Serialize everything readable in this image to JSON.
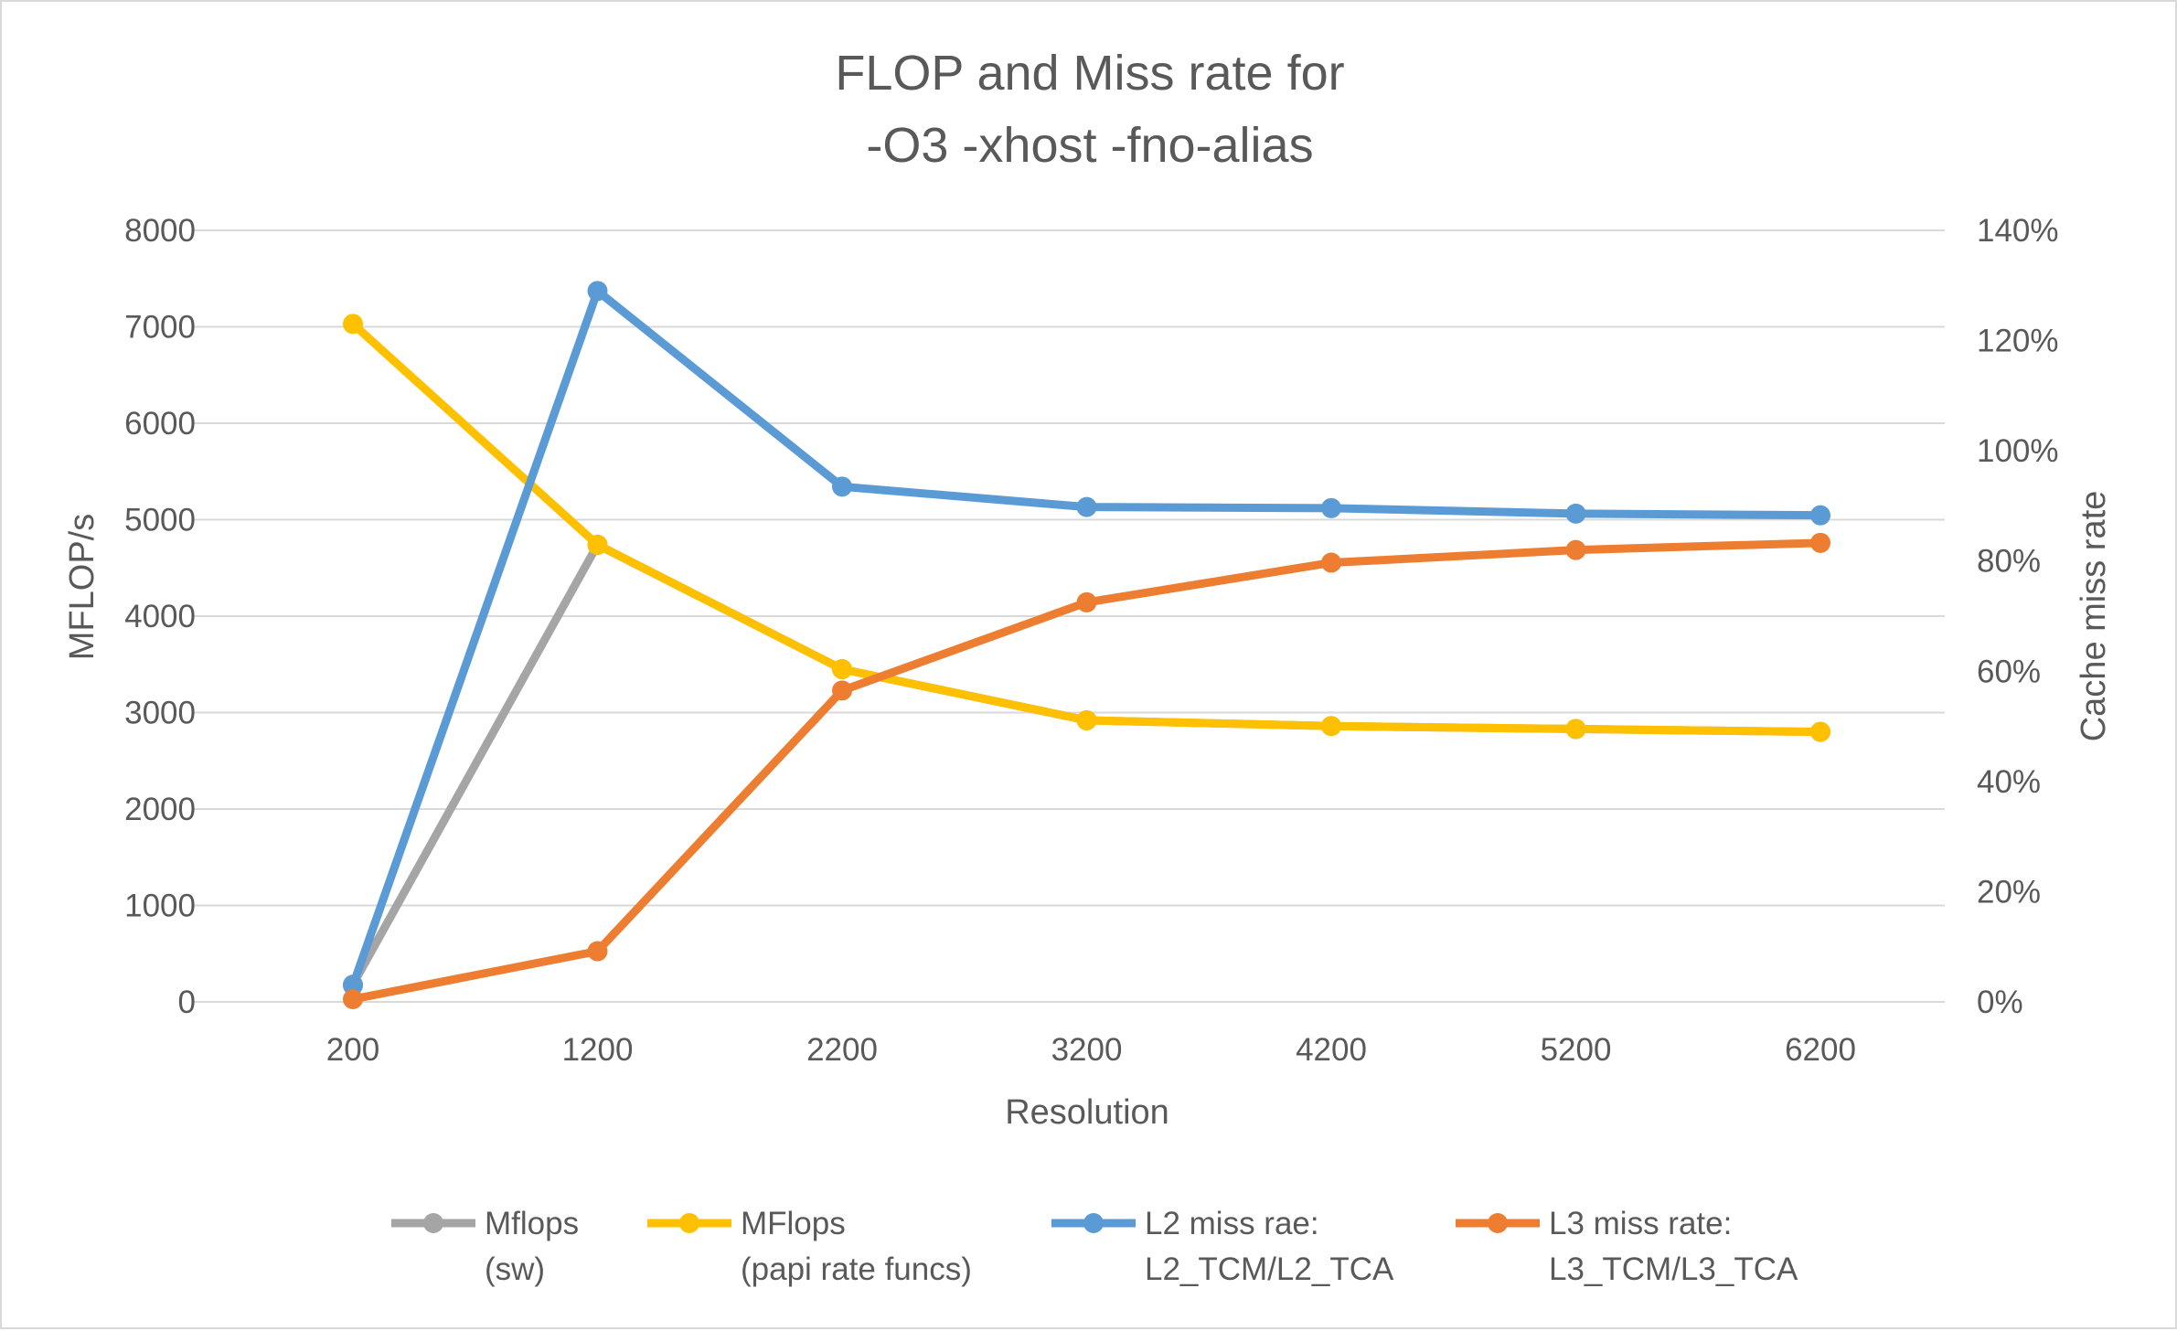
{
  "chart_data": {
    "type": "line",
    "title_lines": [
      "FLOP and Miss rate for",
      "-O3 -xhost -fno-alias"
    ],
    "xlabel": "Resolution",
    "ylabel": "MFLOP/s",
    "y2label": "Cache miss rate",
    "x": [
      200,
      1200,
      2200,
      3200,
      4200,
      5200,
      6200
    ],
    "x_tick_labels": [
      "200",
      "1200",
      "2200",
      "3200",
      "4200",
      "5200",
      "6200"
    ],
    "ylim": [
      0,
      8000
    ],
    "y_ticks": [
      0,
      1000,
      2000,
      3000,
      4000,
      5000,
      6000,
      7000,
      8000
    ],
    "y_tick_labels": [
      "0",
      "1000",
      "2000",
      "3000",
      "4000",
      "5000",
      "6000",
      "7000",
      "8000"
    ],
    "y2lim": [
      0,
      1.4
    ],
    "y2_ticks": [
      0,
      0.2,
      0.4,
      0.6,
      0.8,
      1.0,
      1.2,
      1.4
    ],
    "y2_tick_labels": [
      "0%",
      "20%",
      "40%",
      "60%",
      "80%",
      "100%",
      "120%",
      "140%"
    ],
    "grid": true,
    "legend_position": "bottom",
    "series": [
      {
        "name_lines": [
          "Mflops",
          "(sw)"
        ],
        "axis": "left",
        "color": "#a5a5a5",
        "values": [
          180,
          4740,
          3450,
          2920,
          2860,
          2830,
          2800
        ]
      },
      {
        "name_lines": [
          "MFlops",
          "(papi rate funcs)"
        ],
        "axis": "left",
        "color": "#ffc000",
        "values": [
          7030,
          4740,
          3450,
          2920,
          2860,
          2830,
          2800
        ]
      },
      {
        "name_lines": [
          "L2 miss rae:",
          "L2_TCM/L2_TCA"
        ],
        "axis": "right",
        "color": "#5b9bd5",
        "values": [
          0.03,
          1.29,
          0.935,
          0.898,
          0.896,
          0.886,
          0.883
        ]
      },
      {
        "name_lines": [
          "L3 miss rate:",
          "L3_TCM/L3_TCA"
        ],
        "axis": "right",
        "color": "#ed7d31",
        "values": [
          0.005,
          0.092,
          0.565,
          0.725,
          0.797,
          0.82,
          0.833
        ]
      }
    ]
  }
}
